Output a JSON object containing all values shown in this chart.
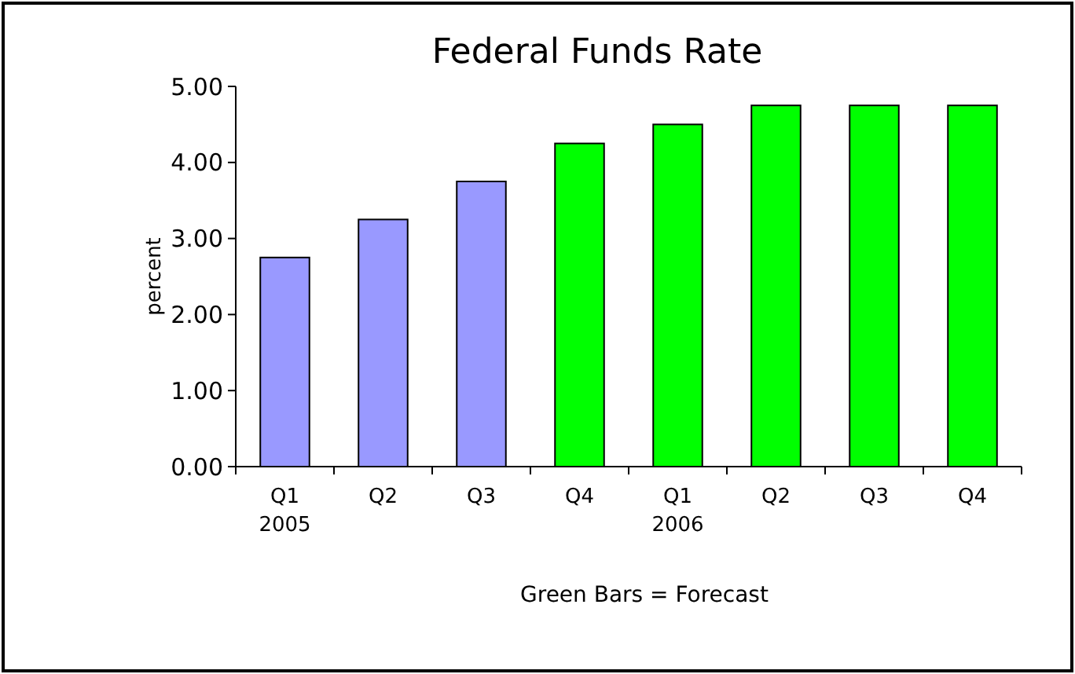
{
  "chart_data": {
    "type": "bar",
    "title": "Federal Funds Rate",
    "ylabel": "percent",
    "categories": [
      "Q1\n2005",
      "Q2",
      "Q3",
      "Q4",
      "Q1\n2006",
      "Q2",
      "Q3",
      "Q4"
    ],
    "values": [
      2.75,
      3.25,
      3.75,
      4.25,
      4.5,
      4.75,
      4.75,
      4.75
    ],
    "colors": [
      "#9999ff",
      "#9999ff",
      "#9999ff",
      "#00ff00",
      "#00ff00",
      "#00ff00",
      "#00ff00",
      "#00ff00"
    ],
    "ylim": [
      0,
      5
    ],
    "yticks": [
      {
        "value": 0,
        "label": "0.00"
      },
      {
        "value": 1,
        "label": "1.00"
      },
      {
        "value": 2,
        "label": "2.00"
      },
      {
        "value": 3,
        "label": "3.00"
      },
      {
        "value": 4,
        "label": "4.00"
      },
      {
        "value": 5,
        "label": "5.00"
      }
    ],
    "annotations": [
      "Green Bars = Forecast"
    ],
    "grid": false
  }
}
